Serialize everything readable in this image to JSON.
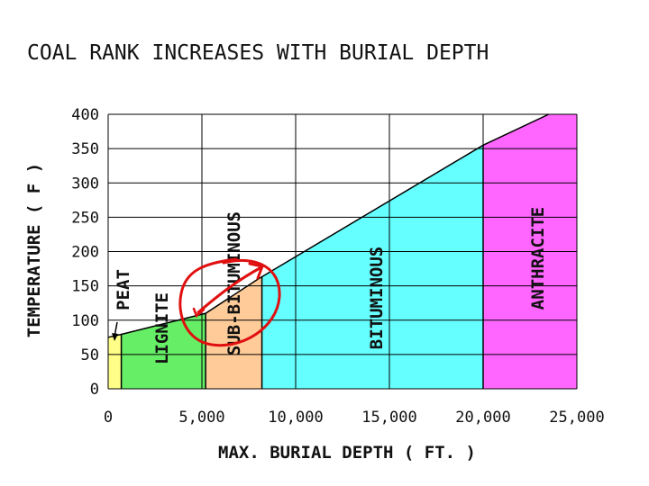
{
  "chart_data": {
    "type": "area",
    "title": "COAL RANK INCREASES WITH BURIAL DEPTH",
    "xlabel": "MAX. BURIAL DEPTH ( FT. )",
    "ylabel": "TEMPERATURE ( F )",
    "xlim": [
      0,
      25000
    ],
    "ylim": [
      0,
      400
    ],
    "x_ticks": [
      "0",
      "5,000",
      "10,000",
      "15,000",
      "20,000",
      "25,000"
    ],
    "y_ticks": [
      "0",
      "50",
      "100",
      "150",
      "200",
      "250",
      "300",
      "350",
      "400"
    ],
    "grid": true,
    "line": {
      "x": [
        0,
        800,
        5200,
        8000,
        20000,
        23500
      ],
      "y": [
        75,
        80,
        110,
        160,
        355,
        400
      ]
    },
    "zones": [
      {
        "label": "PEAT",
        "x_start": 0,
        "x_end": 700,
        "color": "#ffff88"
      },
      {
        "label": "LIGNITE",
        "x_start": 700,
        "x_end": 5200,
        "color": "#66ee66"
      },
      {
        "label": "SUB-BITUMINOUS",
        "x_start": 5200,
        "x_end": 8200,
        "color": "#ffcc99"
      },
      {
        "label": "BITUMINOUS",
        "x_start": 8200,
        "x_end": 20000,
        "color": "#66ffff"
      },
      {
        "label": "ANTHRACITE",
        "x_start": 20000,
        "x_end": 25000,
        "color": "#ff66ff"
      }
    ],
    "annotation": {
      "type": "hand-drawn-circle-arrow",
      "color": "#e01010"
    }
  }
}
